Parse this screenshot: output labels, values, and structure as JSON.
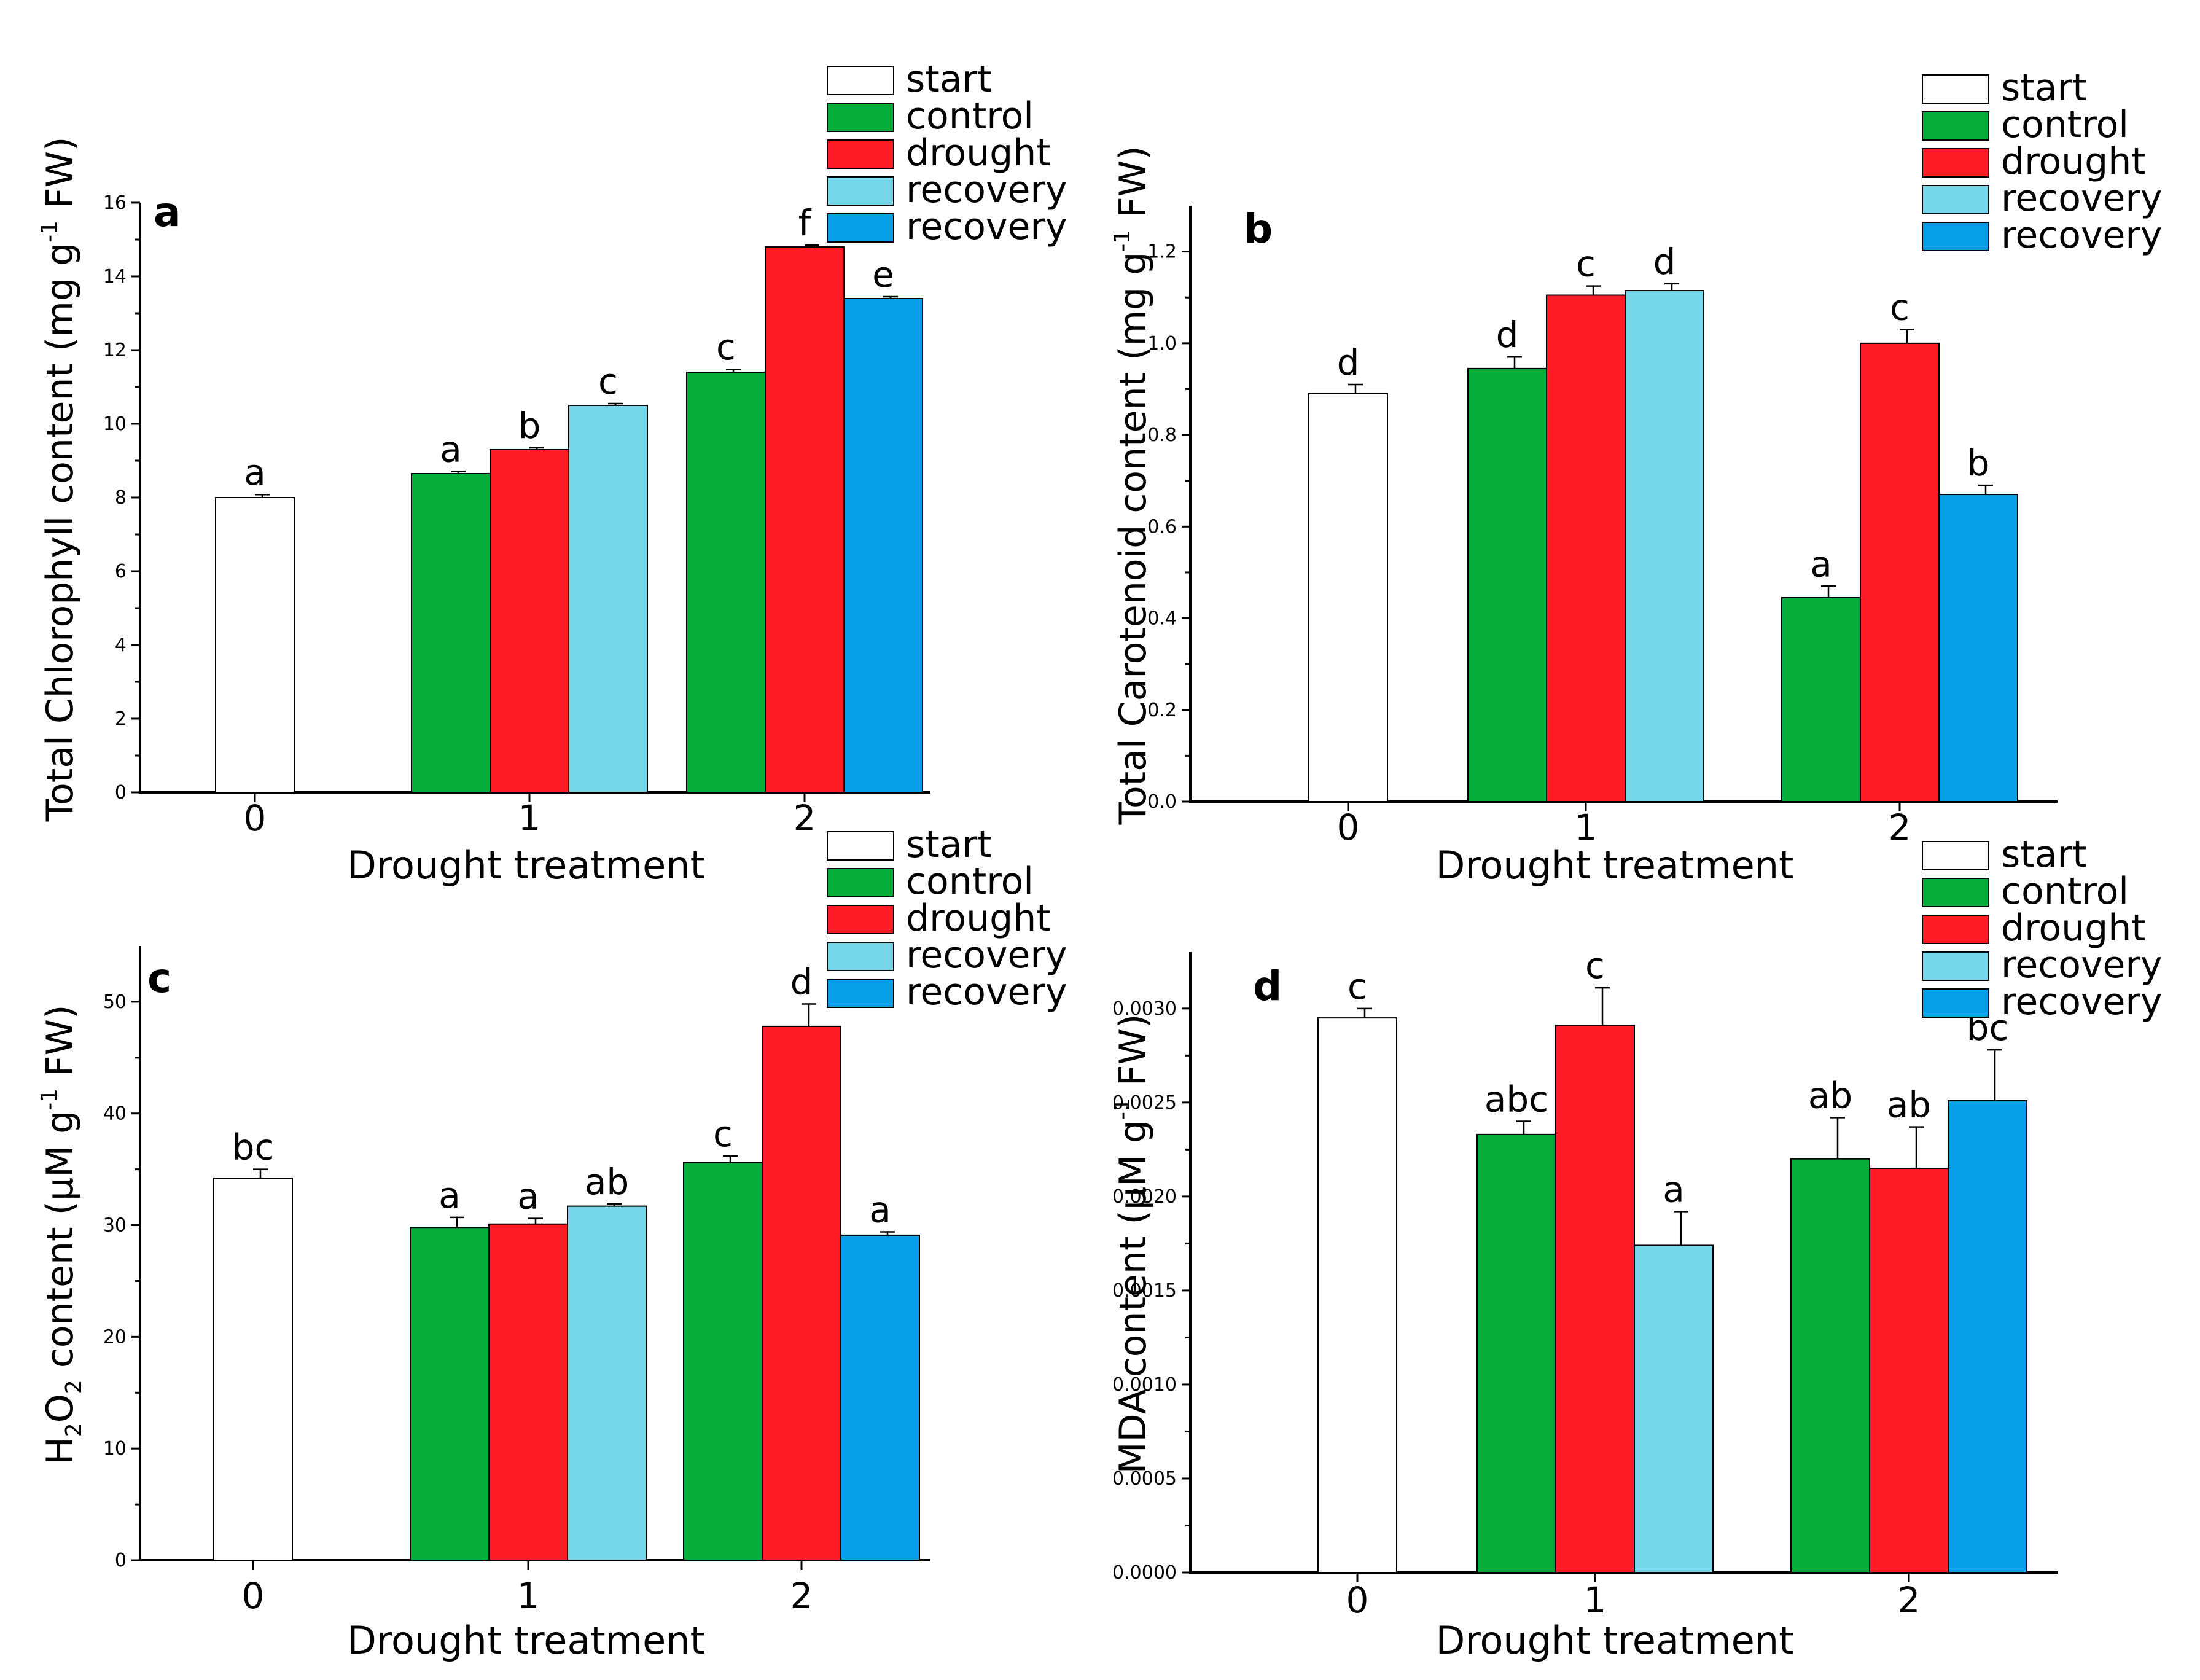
{
  "colors": {
    "start": "#ffffff",
    "control": "#05ad3b",
    "drought": "#fd1b25",
    "recovery1": "#76d6ea",
    "recovery2": "#069fe8",
    "axis": "#000000"
  },
  "chart_data": [
    {
      "type": "bar",
      "panel": "a",
      "ylabel_parts": [
        "Total Chlorophyll content (mg g",
        "-1",
        " FW)"
      ],
      "xlabel": "Drought treatment",
      "categories": [
        "0",
        "1",
        "2"
      ],
      "ylim": [
        0,
        16
      ],
      "yticks": [
        0,
        2,
        4,
        6,
        8,
        10,
        12,
        14,
        16
      ],
      "ytick_labels": [
        "0",
        "2",
        "4",
        "6",
        "8",
        "10",
        "12",
        "14",
        "16"
      ],
      "legend": [
        "start",
        "control",
        "drought",
        "recovery",
        "recovery"
      ],
      "legend_position": "top-right",
      "bars": [
        {
          "series": "start",
          "group": 0,
          "slot": 1.5,
          "value": 8.0,
          "error": 0.08,
          "label": "a"
        },
        {
          "series": "control",
          "group": 1,
          "slot": 0.5,
          "value": 8.65,
          "error": 0.06,
          "label": "a"
        },
        {
          "series": "drought",
          "group": 1,
          "slot": 1.5,
          "value": 9.3,
          "error": 0.05,
          "label": "b"
        },
        {
          "series": "recovery1",
          "group": 1,
          "slot": 2.5,
          "value": 10.5,
          "error": 0.05,
          "label": "c"
        },
        {
          "series": "control",
          "group": 2,
          "slot": 0.5,
          "value": 11.4,
          "error": 0.08,
          "label": "c"
        },
        {
          "series": "drought",
          "group": 2,
          "slot": 1.5,
          "value": 14.8,
          "error": 0.05,
          "label": "f"
        },
        {
          "series": "recovery2",
          "group": 2,
          "slot": 2.5,
          "value": 13.4,
          "error": 0.05,
          "label": "e"
        }
      ]
    },
    {
      "type": "bar",
      "panel": "b",
      "ylabel_parts": [
        "Total Carotenoid content (mg g",
        "-1",
        " FW)"
      ],
      "xlabel": "Drought treatment",
      "categories": [
        "0",
        "1",
        "2"
      ],
      "ylim": [
        0,
        1.3
      ],
      "yticks": [
        0,
        0.2,
        0.4,
        0.6,
        0.8,
        1.0,
        1.2
      ],
      "ytick_labels": [
        "0.0",
        "0.2",
        "0.4",
        "0.6",
        "0.8",
        "1.0",
        "1.2"
      ],
      "legend": [
        "start",
        "control",
        "drought",
        "recovery",
        "recovery"
      ],
      "legend_position": "top-right",
      "bars": [
        {
          "series": "start",
          "group": 0,
          "slot": 1.5,
          "value": 0.89,
          "error": 0.02,
          "label": "d"
        },
        {
          "series": "control",
          "group": 1,
          "slot": 0.5,
          "value": 0.945,
          "error": 0.025,
          "label": "d"
        },
        {
          "series": "drought",
          "group": 1,
          "slot": 1.5,
          "value": 1.105,
          "error": 0.02,
          "label": "c"
        },
        {
          "series": "recovery1",
          "group": 1,
          "slot": 2.5,
          "value": 1.115,
          "error": 0.015,
          "label": "d"
        },
        {
          "series": "control",
          "group": 2,
          "slot": 0.5,
          "value": 0.445,
          "error": 0.025,
          "label": "a"
        },
        {
          "series": "drought",
          "group": 2,
          "slot": 1.5,
          "value": 1.0,
          "error": 0.03,
          "label": "c"
        },
        {
          "series": "recovery2",
          "group": 2,
          "slot": 2.5,
          "value": 0.67,
          "error": 0.02,
          "label": "b"
        }
      ]
    },
    {
      "type": "bar",
      "panel": "c",
      "ylabel_parts": [
        "H",
        "2",
        "O",
        "2",
        " content (μM g",
        "-1",
        " FW)"
      ],
      "xlabel": "Drought treatment",
      "categories": [
        "0",
        "1",
        "2"
      ],
      "ylim": [
        0,
        55
      ],
      "yticks": [
        0,
        10,
        20,
        30,
        40,
        50
      ],
      "ytick_labels": [
        "0",
        "10",
        "20",
        "30",
        "40",
        "50"
      ],
      "legend": [
        "start",
        "control",
        "drought",
        "recovery",
        "recovery"
      ],
      "legend_position": "top-right",
      "bars": [
        {
          "series": "start",
          "group": 0,
          "slot": 1.5,
          "value": 34.2,
          "error": 0.8,
          "label": "bc"
        },
        {
          "series": "control",
          "group": 1,
          "slot": 0.5,
          "value": 29.8,
          "error": 0.9,
          "label": "a"
        },
        {
          "series": "drought",
          "group": 1,
          "slot": 1.5,
          "value": 30.1,
          "error": 0.5,
          "label": "a"
        },
        {
          "series": "recovery1",
          "group": 1,
          "slot": 2.5,
          "value": 31.7,
          "error": 0.2,
          "label": "ab"
        },
        {
          "series": "control",
          "group": 2,
          "slot": 0.5,
          "value": 35.6,
          "error": 0.6,
          "label": "c"
        },
        {
          "series": "drought",
          "group": 2,
          "slot": 1.5,
          "value": 47.8,
          "error": 2.0,
          "label": "d"
        },
        {
          "series": "recovery2",
          "group": 2,
          "slot": 2.5,
          "value": 29.1,
          "error": 0.3,
          "label": "a"
        }
      ]
    },
    {
      "type": "bar",
      "panel": "d",
      "ylabel_parts": [
        "MDA content (μM g",
        "-1",
        " FW)"
      ],
      "xlabel": "Drought treatment",
      "categories": [
        "0",
        "1",
        "2"
      ],
      "ylim": [
        0,
        0.0033
      ],
      "yticks": [
        0,
        0.0005,
        0.001,
        0.0015,
        0.002,
        0.0025,
        0.003
      ],
      "ytick_labels": [
        "0.0000",
        "0.0005",
        "0.0010",
        "0.0015",
        "0.0020",
        "0.0025",
        "0.0030"
      ],
      "legend": [
        "start",
        "control",
        "drought",
        "recovery",
        "recovery"
      ],
      "legend_position": "top-right",
      "bars": [
        {
          "series": "start",
          "group": 0,
          "slot": 1.5,
          "value": 0.00295,
          "error": 5e-05,
          "label": "c"
        },
        {
          "series": "control",
          "group": 1,
          "slot": 0.5,
          "value": 0.00233,
          "error": 7e-05,
          "label": "abc"
        },
        {
          "series": "drought",
          "group": 1,
          "slot": 1.5,
          "value": 0.00291,
          "error": 0.0002,
          "label": "c"
        },
        {
          "series": "recovery1",
          "group": 1,
          "slot": 2.5,
          "value": 0.00174,
          "error": 0.00018,
          "label": "a"
        },
        {
          "series": "control",
          "group": 2,
          "slot": 0.5,
          "value": 0.0022,
          "error": 0.00022,
          "label": "ab"
        },
        {
          "series": "drought",
          "group": 2,
          "slot": 1.5,
          "value": 0.00215,
          "error": 0.00022,
          "label": "ab"
        },
        {
          "series": "recovery2",
          "group": 2,
          "slot": 2.5,
          "value": 0.00251,
          "error": 0.00027,
          "label": "bc"
        }
      ]
    }
  ]
}
